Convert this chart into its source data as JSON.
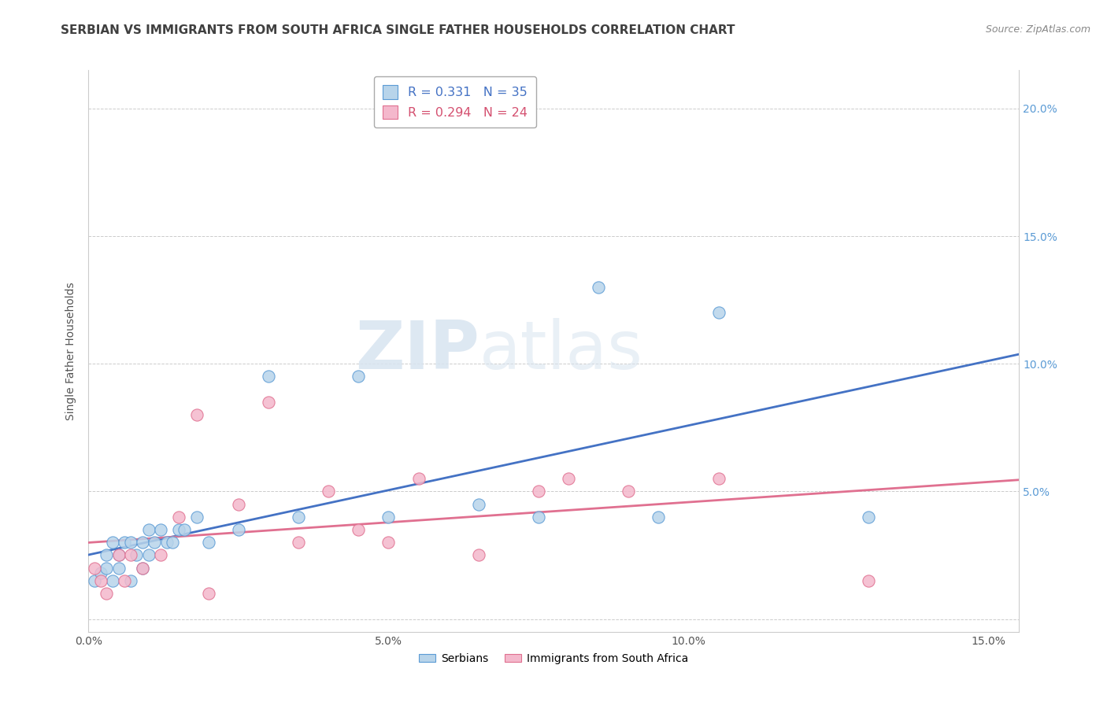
{
  "title": "SERBIAN VS IMMIGRANTS FROM SOUTH AFRICA SINGLE FATHER HOUSEHOLDS CORRELATION CHART",
  "source": "Source: ZipAtlas.com",
  "ylabel": "Single Father Households",
  "xlim": [
    0.0,
    0.155
  ],
  "ylim": [
    -0.005,
    0.215
  ],
  "xtick_vals": [
    0.0,
    0.05,
    0.1,
    0.15
  ],
  "ytick_vals": [
    0.0,
    0.05,
    0.1,
    0.15,
    0.2
  ],
  "serbian_R": 0.331,
  "serbian_N": 35,
  "south_africa_R": 0.294,
  "south_africa_N": 24,
  "serbian_color": "#b8d4ea",
  "serbian_edge": "#5b9bd5",
  "south_africa_color": "#f4b8cc",
  "south_africa_edge": "#e07090",
  "trend_serbian_color": "#4472c4",
  "trend_south_africa_color": "#e07090",
  "watermark_zip": "ZIP",
  "watermark_atlas": "atlas",
  "serbian_x": [
    0.001,
    0.002,
    0.003,
    0.003,
    0.004,
    0.004,
    0.005,
    0.005,
    0.006,
    0.007,
    0.007,
    0.008,
    0.009,
    0.009,
    0.01,
    0.01,
    0.011,
    0.012,
    0.013,
    0.014,
    0.015,
    0.016,
    0.018,
    0.02,
    0.025,
    0.03,
    0.035,
    0.045,
    0.05,
    0.065,
    0.075,
    0.085,
    0.095,
    0.105,
    0.13
  ],
  "serbian_y": [
    0.015,
    0.018,
    0.02,
    0.025,
    0.015,
    0.03,
    0.02,
    0.025,
    0.03,
    0.015,
    0.03,
    0.025,
    0.02,
    0.03,
    0.025,
    0.035,
    0.03,
    0.035,
    0.03,
    0.03,
    0.035,
    0.035,
    0.04,
    0.03,
    0.035,
    0.095,
    0.04,
    0.095,
    0.04,
    0.045,
    0.04,
    0.13,
    0.04,
    0.12,
    0.04
  ],
  "south_africa_x": [
    0.001,
    0.002,
    0.003,
    0.005,
    0.006,
    0.007,
    0.009,
    0.012,
    0.015,
    0.018,
    0.02,
    0.025,
    0.03,
    0.035,
    0.04,
    0.045,
    0.05,
    0.055,
    0.065,
    0.075,
    0.08,
    0.09,
    0.105,
    0.13
  ],
  "south_africa_y": [
    0.02,
    0.015,
    0.01,
    0.025,
    0.015,
    0.025,
    0.02,
    0.025,
    0.04,
    0.08,
    0.01,
    0.045,
    0.085,
    0.03,
    0.05,
    0.035,
    0.03,
    0.055,
    0.025,
    0.05,
    0.055,
    0.05,
    0.055,
    0.015
  ],
  "legend_serbian_label": "Serbians",
  "legend_south_africa_label": "Immigrants from South Africa",
  "title_fontsize": 11,
  "axis_label_fontsize": 10,
  "tick_fontsize": 10
}
